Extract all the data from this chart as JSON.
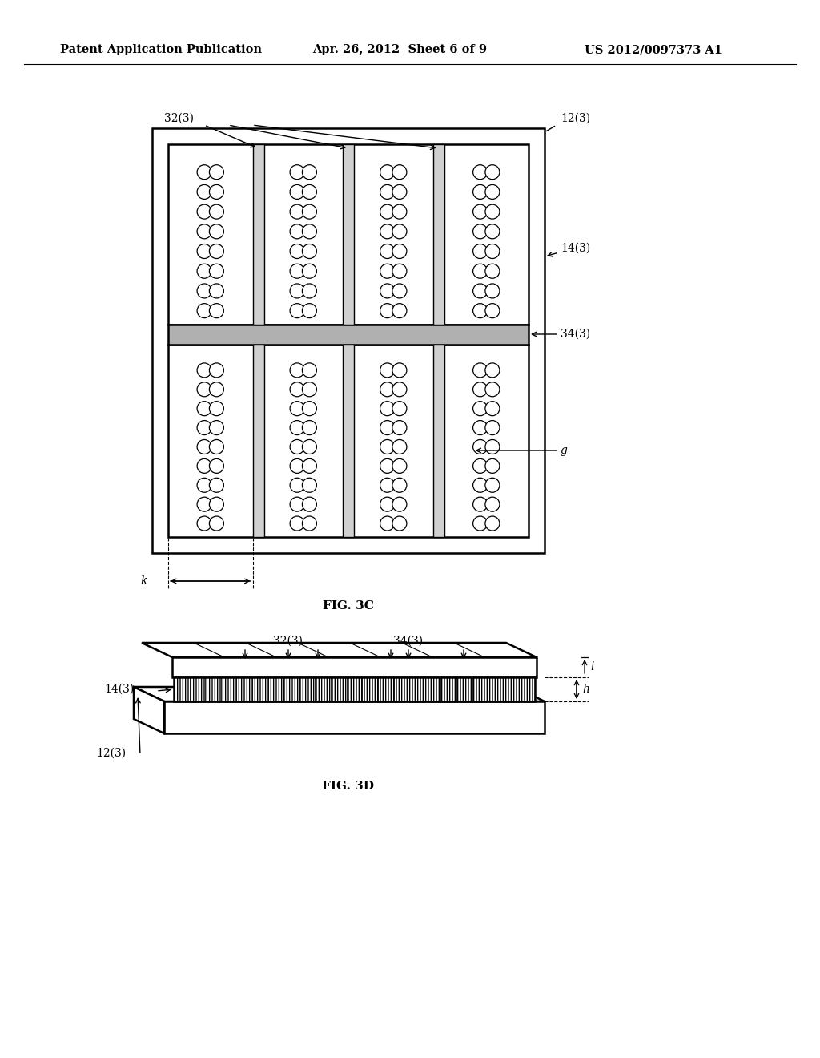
{
  "bg_color": "#ffffff",
  "header_left": "Patent Application Publication",
  "header_mid": "Apr. 26, 2012  Sheet 6 of 9",
  "header_right": "US 2012/0097373 A1",
  "fig3c_label": "FIG. 3C",
  "fig3d_label": "FIG. 3D",
  "labels": {
    "32_3_top": "32(3)",
    "12_3_top": "12(3)",
    "14_3": "14(3)",
    "34_3": "34(3)",
    "g": "g",
    "k": "k",
    "32_3_bot": "32(3)",
    "34_3_bot": "34(3)",
    "14_3_bot": "14(3)",
    "12_3_bot": "12(3)",
    "i": "i",
    "h": "h"
  }
}
